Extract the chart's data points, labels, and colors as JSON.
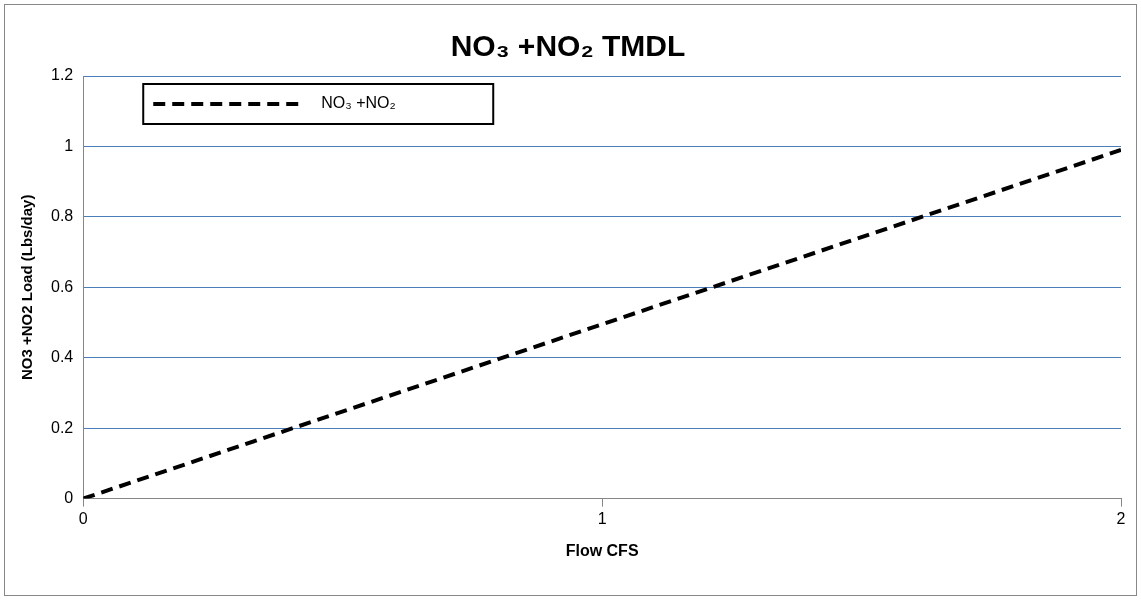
{
  "chart_data": {
    "type": "line",
    "title": "NO₃ +NO₂ TMDL",
    "xlabel": "Flow CFS",
    "ylabel": "NO3 +NO2 Load (Lbs/day)",
    "x": [
      0,
      2
    ],
    "series": [
      {
        "name": "NO₃ +NO₂",
        "color": "#000000",
        "values": [
          0,
          0.99
        ]
      }
    ],
    "xlim": [
      0,
      2
    ],
    "xticks": [
      0,
      1,
      2
    ],
    "ylim": [
      0,
      1.2
    ],
    "yticks": [
      0,
      0.2,
      0.4,
      0.6,
      0.8,
      1,
      1.2
    ],
    "grid": "y",
    "legend": "top left",
    "marker": "none",
    "line_style": "dashed"
  }
}
